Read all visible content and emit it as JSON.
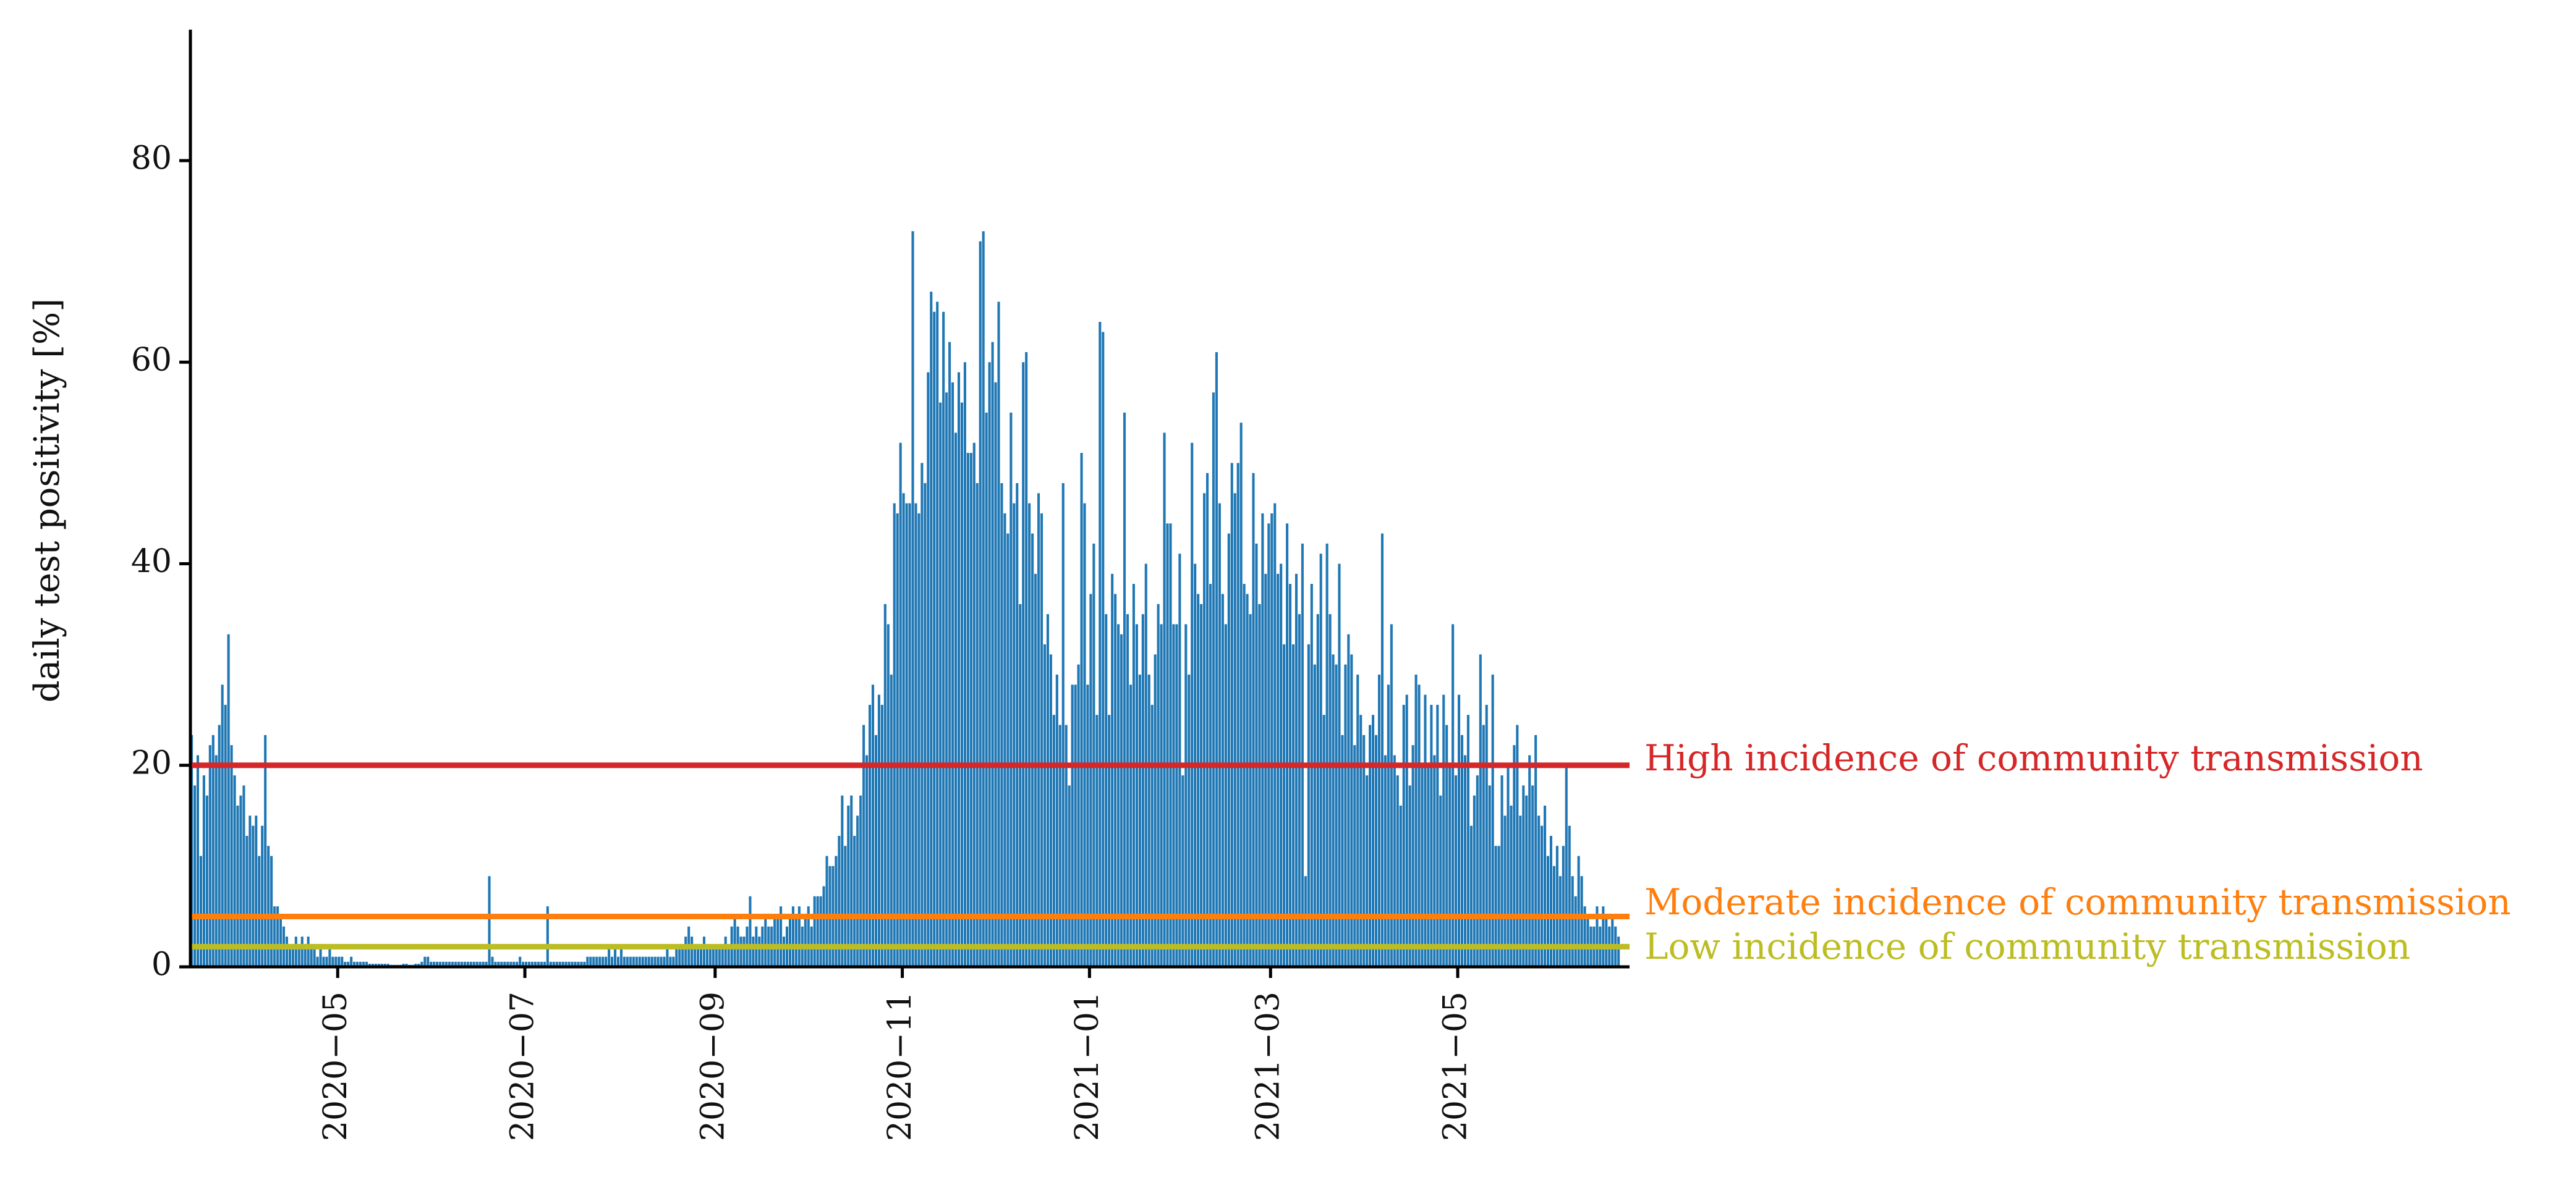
{
  "chart_data": {
    "type": "bar",
    "ylabel": "daily test positivity [%]",
    "xlabel": "",
    "ylim": [
      0,
      93
    ],
    "xlim": [
      "2020-03-14",
      "2021-06-26"
    ],
    "grid": false,
    "bar_color": "#1f77b4",
    "y_ticks": [
      0,
      20,
      40,
      60,
      80
    ],
    "x_ticks": [
      "2020-05-01",
      "2020-07-01",
      "2020-09-01",
      "2020-11-01",
      "2021-01-01",
      "2021-03-01",
      "2021-05-01"
    ],
    "x_tick_labels": [
      "2020−05",
      "2020−07",
      "2020−09",
      "2020−11",
      "2021−01",
      "2021−03",
      "2021−05"
    ],
    "reference_lines": [
      {
        "label": "High incidence of community transmission",
        "value": 20,
        "color": "#d62728"
      },
      {
        "label": "Moderate incidence of community transmission",
        "value": 5,
        "color": "#ff7f0e"
      },
      {
        "label": "Low incidence of community transmission",
        "value": 2,
        "color": "#bcbd22"
      }
    ],
    "series": [
      {
        "start_date": "2020-03-14",
        "values": [
          23,
          18,
          21,
          11,
          19,
          17,
          22,
          23,
          21,
          24,
          28,
          26,
          33,
          22,
          19,
          16,
          17,
          18,
          13,
          15,
          14,
          15,
          11,
          14,
          23,
          12,
          11,
          6,
          6,
          5,
          4,
          3,
          2,
          2,
          3,
          2,
          3,
          2,
          3,
          2,
          2,
          1,
          2,
          1,
          1,
          2,
          1,
          1,
          1,
          1,
          0.5,
          0.5,
          1,
          0.5,
          0.5,
          0.5,
          0.5,
          0.5,
          0.3,
          0.3,
          0.3,
          0.3,
          0.3,
          0.3,
          0.3,
          0.2,
          0.2,
          0.2,
          0.2,
          0.3,
          0.3,
          0.2,
          0.2,
          0.3,
          0.3,
          0.5,
          1,
          1,
          0.5,
          0.5,
          0.5,
          0.5,
          0.5,
          0.5,
          0.5,
          0.5,
          0.5,
          0.5,
          0.5,
          0.5,
          0.5,
          0.5,
          0.5,
          0.5,
          0.5,
          0.5,
          0.5,
          9,
          1,
          0.5,
          0.5,
          0.5,
          0.5,
          0.5,
          0.5,
          0.5,
          0.5,
          1,
          0.5,
          0.5,
          0.5,
          0.5,
          0.5,
          0.5,
          0.5,
          0.5,
          6,
          0.5,
          0.5,
          0.5,
          0.5,
          0.5,
          0.5,
          0.5,
          0.5,
          0.5,
          0.5,
          0.5,
          0.5,
          1,
          1,
          1,
          1,
          1,
          1,
          1,
          2,
          1,
          2,
          1,
          2,
          1,
          1,
          1,
          1,
          1,
          1,
          1,
          1,
          1,
          1,
          1,
          1,
          1,
          1,
          2,
          1,
          1,
          2,
          2,
          2,
          3,
          4,
          3,
          2,
          2,
          2,
          3,
          2,
          2,
          2,
          2,
          2,
          2,
          3,
          2,
          4,
          5,
          4,
          3,
          3,
          4,
          7,
          3,
          4,
          3,
          4,
          5,
          4,
          4,
          5,
          5,
          6,
          3,
          4,
          5,
          6,
          5,
          6,
          4,
          5,
          6,
          4,
          7,
          7,
          7,
          8,
          11,
          10,
          10,
          11,
          13,
          17,
          12,
          16,
          17,
          13,
          15,
          17,
          24,
          21,
          26,
          28,
          23,
          27,
          26,
          36,
          34,
          29,
          46,
          45,
          52,
          47,
          46,
          46,
          73,
          46,
          45,
          50,
          48,
          59,
          67,
          65,
          66,
          56,
          65,
          57,
          62,
          58,
          53,
          59,
          56,
          60,
          51,
          51,
          52,
          48,
          72,
          73,
          55,
          60,
          62,
          58,
          66,
          48,
          45,
          43,
          55,
          46,
          48,
          36,
          60,
          61,
          46,
          43,
          39,
          47,
          45,
          32,
          35,
          31,
          25,
          29,
          24,
          48,
          24,
          18,
          28,
          28,
          30,
          51,
          46,
          28,
          37,
          42,
          25,
          64,
          63,
          35,
          25,
          39,
          37,
          34,
          33,
          55,
          35,
          28,
          38,
          34,
          29,
          35,
          40,
          29,
          26,
          31,
          36,
          34,
          53,
          44,
          44,
          34,
          34,
          41,
          19,
          34,
          29,
          52,
          40,
          37,
          36,
          47,
          49,
          38,
          57,
          61,
          46,
          37,
          34,
          43,
          50,
          47,
          50,
          54,
          38,
          37,
          35,
          49,
          42,
          36,
          45,
          39,
          44,
          45,
          46,
          39,
          40,
          32,
          44,
          38,
          32,
          39,
          35,
          42,
          9,
          32,
          38,
          30,
          35,
          41,
          25,
          42,
          35,
          31,
          30,
          40,
          23,
          30,
          33,
          31,
          22,
          29,
          25,
          23,
          19,
          24,
          25,
          23,
          29,
          43,
          21,
          28,
          34,
          21,
          19,
          16,
          26,
          27,
          18,
          22,
          29,
          28,
          20,
          27,
          20,
          26,
          21,
          26,
          17,
          27,
          24,
          20,
          34,
          19,
          27,
          23,
          21,
          25,
          14,
          17,
          19,
          31,
          24,
          26,
          18,
          29,
          12,
          12,
          19,
          15,
          20,
          16,
          22,
          24,
          15,
          18,
          17,
          21,
          18,
          23,
          15,
          14,
          16,
          11,
          13,
          10,
          12,
          9,
          12,
          20,
          14,
          9,
          7,
          11,
          9,
          6,
          5,
          4,
          4,
          6,
          4,
          6,
          5,
          4,
          5,
          4,
          3
        ]
      }
    ]
  }
}
